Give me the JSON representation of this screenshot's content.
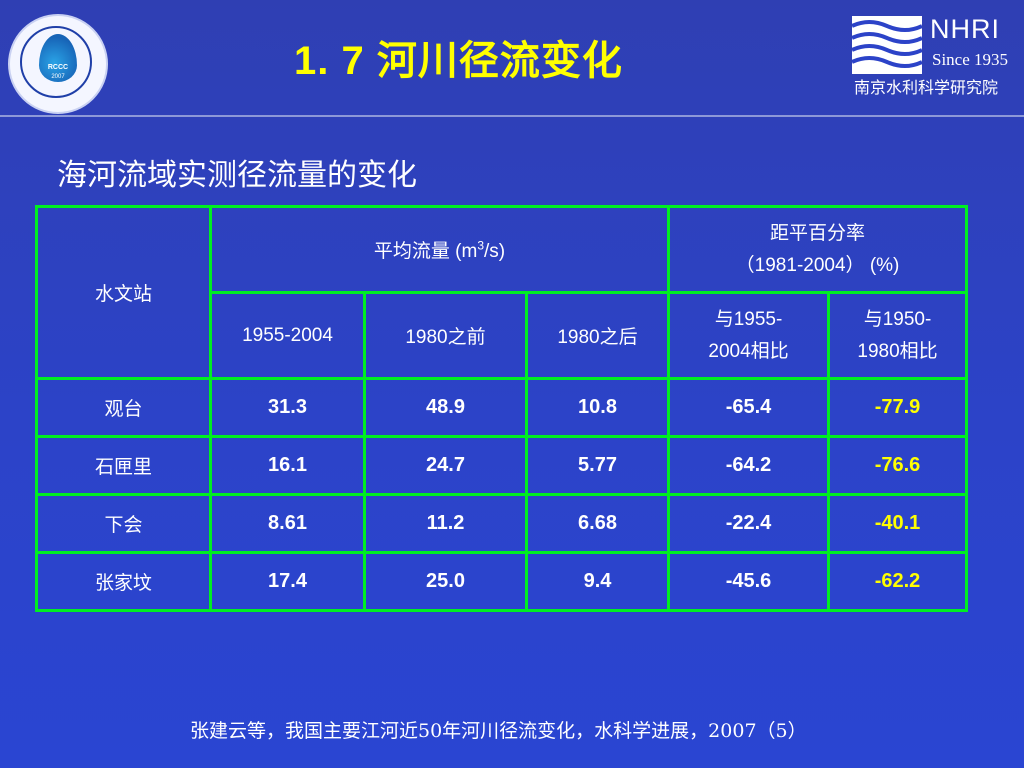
{
  "header": {
    "title": "1. 7  河川径流变化",
    "logo_left": {
      "abbr": "RCCC",
      "year": "2007"
    },
    "logo_right": {
      "name": "NHRI",
      "since": "Since 1935",
      "org_cn": "南京水利科学研究院"
    }
  },
  "subtitle": "海河流域实测径流量的变化",
  "table": {
    "station_header": "水文站",
    "mean_flow_header": "平均流量 (m",
    "mean_flow_sup": "3",
    "mean_flow_tail": "/s)",
    "anomaly_header_1": "距平百分率",
    "anomaly_header_2": "（1981-2004） (%)",
    "sub_headers": [
      "1955-2004",
      "1980之前",
      "1980之后"
    ],
    "cmp1_line1": "与1955-",
    "cmp1_line2": "2004相比",
    "cmp2_line1": "与1950-",
    "cmp2_line2": "1980相比",
    "rows": [
      {
        "station": "观台",
        "v1": "31.3",
        "v2": "48.9",
        "v3": "10.8",
        "a1": "-65.4",
        "a2": "-77.9"
      },
      {
        "station": "石匣里",
        "v1": "16.1",
        "v2": "24.7",
        "v3": "5.77",
        "a1": "-64.2",
        "a2": "-76.6"
      },
      {
        "station": "下会",
        "v1": "8.61",
        "v2": "11.2",
        "v3": "6.68",
        "a1": "-22.4",
        "a2": "-40.1"
      },
      {
        "station": "张家坟",
        "v1": "17.4",
        "v2": "25.0",
        "v3": "9.4",
        "a1": "-45.6",
        "a2": "-62.2"
      }
    ]
  },
  "citation": "张建云等，我国主要江河近50年河川径流变化，水科学进展，2007（5）",
  "colors": {
    "background": "#2c43c8",
    "title": "#ffff00",
    "grid": "#00ee22",
    "highlight": "#ffff00"
  }
}
